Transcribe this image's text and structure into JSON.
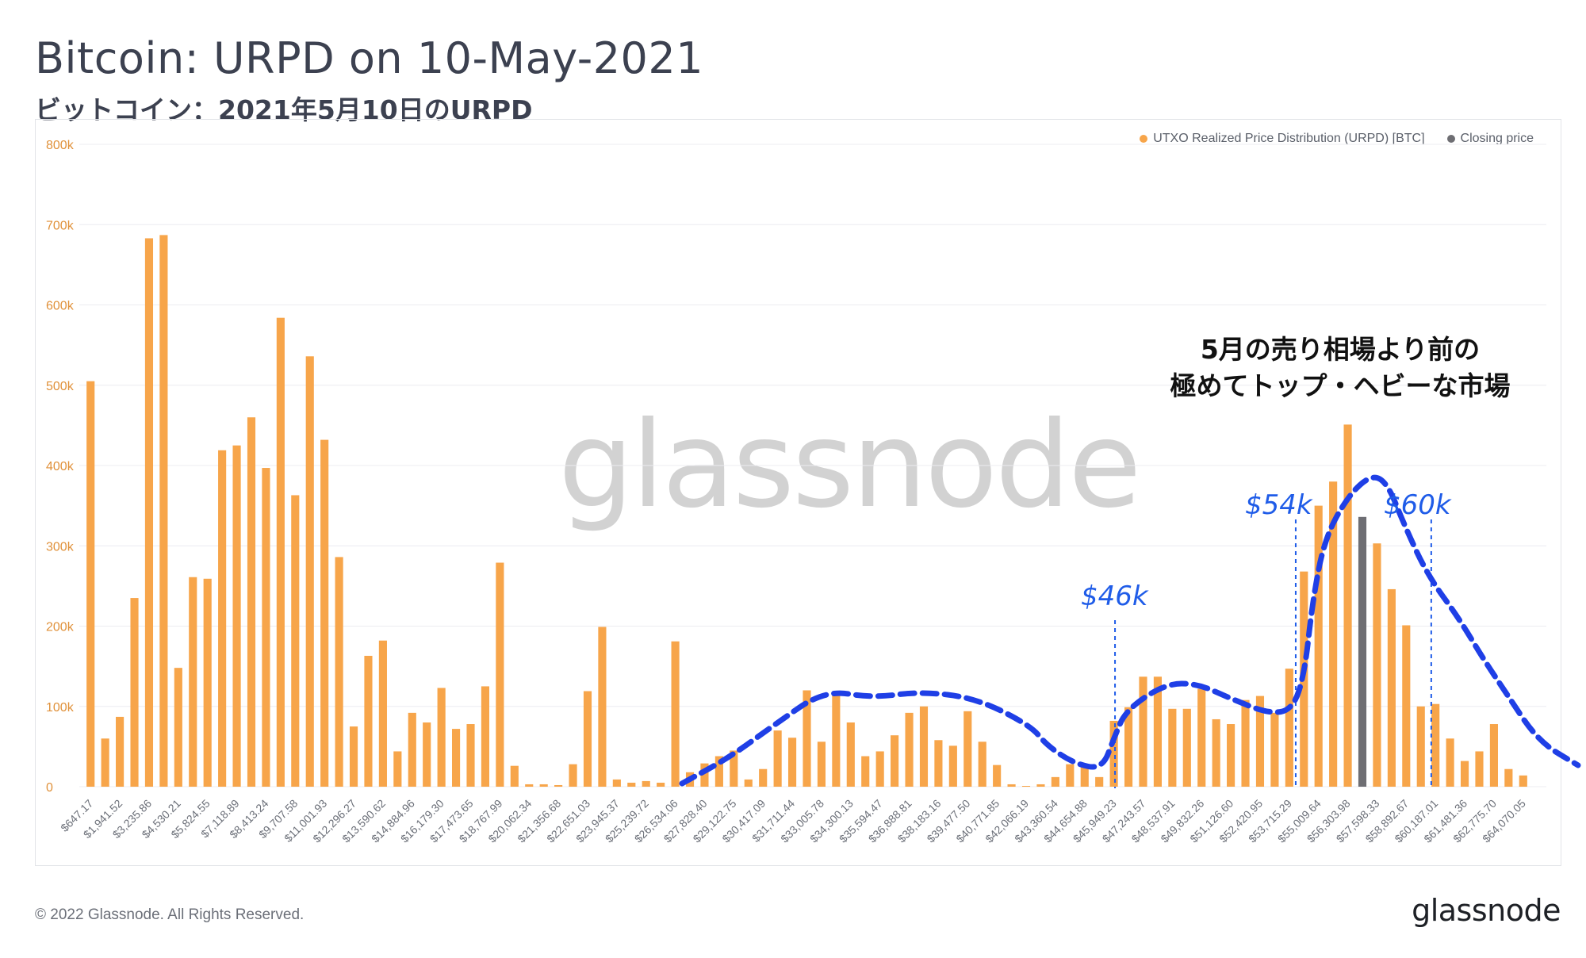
{
  "header": {
    "title": "Bitcoin: URPD on 10-May-2021",
    "subtitle": "ビットコイン：2021年5月10日のURPD"
  },
  "footer": {
    "copyright": "© 2022 Glassnode. All Rights Reserved.",
    "brand": "glassnode"
  },
  "watermark": "glassnode",
  "annotation": {
    "line1": "5月の売り相場より前の",
    "line2": "極めてトップ・ヘビーな市場"
  },
  "price_labels": {
    "p46": "$46k",
    "p54": "$54k",
    "p60": "$60k"
  },
  "colors": {
    "bar": "#f7a54a",
    "closing": "#6e6e73",
    "curve": "#1f3fe6",
    "price_line": "#1f5ce8"
  },
  "chart_data": {
    "type": "bar",
    "legend": {
      "placement": "top-right",
      "series": [
        "UTXO Realized Price Distribution (URPD) [BTC]",
        "Closing price"
      ]
    },
    "ylim": [
      0,
      800000
    ],
    "yticks": [
      0,
      100000,
      200000,
      300000,
      400000,
      500000,
      600000,
      700000,
      800000
    ],
    "ytick_labels": [
      "0",
      "100k",
      "200k",
      "300k",
      "400k",
      "500k",
      "600k",
      "700k",
      "800k"
    ],
    "x_tick_labels": [
      "$647.17",
      "$1,941.52",
      "$3,235.86",
      "$4,530.21",
      "$5,824.55",
      "$7,118.89",
      "$8,413.24",
      "$9,707.58",
      "$11,001.93",
      "$12,296.27",
      "$13,590.62",
      "$14,884.96",
      "$16,179.30",
      "$17,473.65",
      "$18,767.99",
      "$20,062.34",
      "$21,356.68",
      "$22,651.03",
      "$23,945.37",
      "$25,239.72",
      "$26,534.06",
      "$27,828.40",
      "$29,122.75",
      "$30,417.09",
      "$31,711.44",
      "$33,005.78",
      "$34,300.13",
      "$35,594.47",
      "$36,888.81",
      "$38,183.16",
      "$39,477.50",
      "$40,771.85",
      "$42,066.19",
      "$43,360.54",
      "$44,654.88",
      "$45,949.23",
      "$47,243.57",
      "$48,537.91",
      "$49,832.26",
      "$51,126.60",
      "$52,420.95",
      "$53,715.29",
      "$55,009.64",
      "$56,303.98",
      "$57,598.33",
      "$58,892.67",
      "$60,187.01",
      "$61,481.36",
      "$62,775.70",
      "$64,070.05"
    ],
    "values": [
      505000,
      60000,
      87000,
      235000,
      683000,
      687000,
      148000,
      261000,
      259000,
      419000,
      425000,
      460000,
      397000,
      584000,
      363000,
      536000,
      432000,
      286000,
      75000,
      163000,
      182000,
      44000,
      92000,
      80000,
      123000,
      72000,
      78000,
      125000,
      279000,
      26000,
      3000,
      3000,
      2000,
      28000,
      119000,
      199000,
      9000,
      5000,
      7000,
      5000,
      181000,
      18000,
      29000,
      38000,
      45000,
      9000,
      22000,
      70000,
      61000,
      120000,
      56000,
      119000,
      80000,
      38000,
      44000,
      64000,
      92000,
      100000,
      58000,
      51000,
      94000,
      56000,
      27000,
      3000,
      1000,
      3000,
      12000,
      28000,
      25000,
      12000,
      82000,
      99000,
      137000,
      137000,
      97000,
      97000,
      122000,
      84000,
      78000,
      108000,
      113000,
      92000,
      147000,
      268000,
      350000,
      380000,
      451000,
      336000,
      303000,
      246000,
      201000,
      100000,
      103000,
      60000,
      32000,
      44000,
      78000,
      22000,
      14000
    ],
    "closing_price_bin_index": 87,
    "price_markers": [
      {
        "label": "$46k",
        "price": 46000
      },
      {
        "label": "$54k",
        "price": 54000
      },
      {
        "label": "$60k",
        "price": 60000
      }
    ]
  }
}
